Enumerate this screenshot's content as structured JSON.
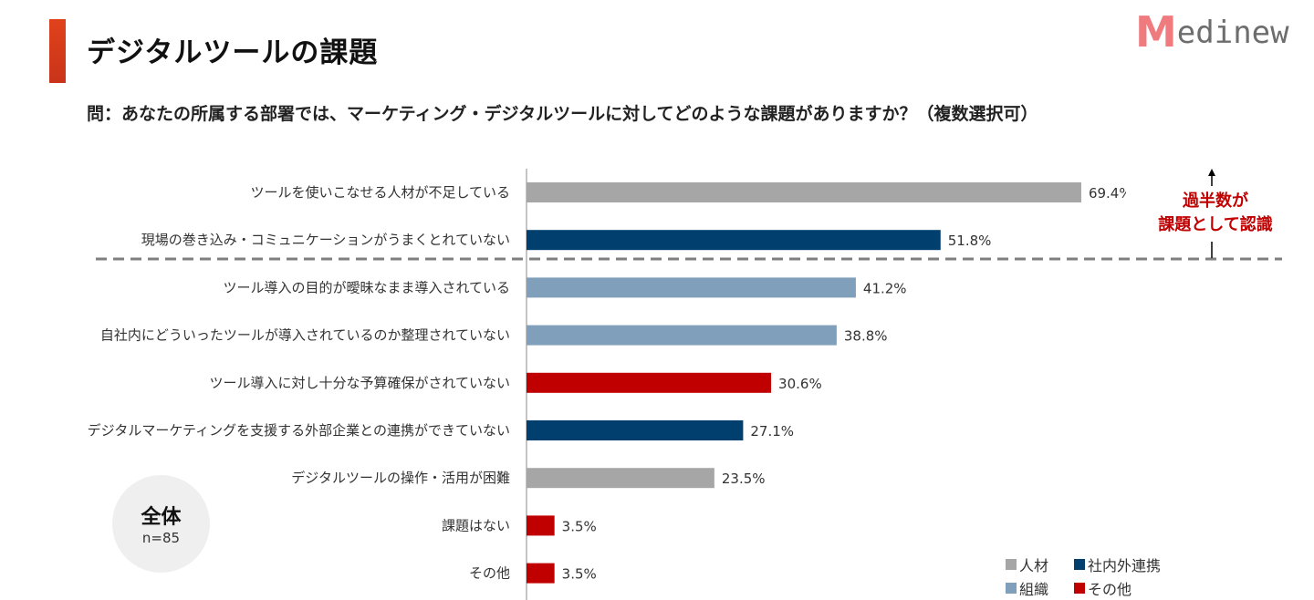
{
  "header": {
    "title": "デジタルツールの課題",
    "question": "問：あなたの所属する部署では、マーケティング・デジタルツールに対してどのような課題がありますか？（複数選択可）",
    "logo": "Medinew"
  },
  "annotation": {
    "line1": "過半数が",
    "line2": "課題として認識"
  },
  "badge": {
    "label": "全体",
    "n": "n=85"
  },
  "colors": {
    "人材": "#a6a6a6",
    "社内外連携": "#003f6e",
    "組織": "#7f9fba",
    "その他": "#c00000"
  },
  "legend": [
    {
      "label": "人材",
      "color": "#a6a6a6"
    },
    {
      "label": "社内外連携",
      "color": "#003f6e"
    },
    {
      "label": "組織",
      "color": "#7f9fba"
    },
    {
      "label": "その他",
      "color": "#c00000"
    }
  ],
  "chart_data": {
    "type": "bar",
    "orientation": "horizontal",
    "unit": "%",
    "categories": [
      "ツールを使いこなせる人材が不足している",
      "現場の巻き込み・コミュニケーションがうまくとれていない",
      "ツール導入の目的が曖昧なまま導入されている",
      "自社内にどういったツールが導入されているのか整理されていない",
      "ツール導入に対し十分な予算確保がされていない",
      "デジタルマーケティングを支援する外部企業との連携ができていない",
      "デジタルツールの操作・活用が困難",
      "課題はない",
      "その他"
    ],
    "values": [
      69.4,
      51.8,
      41.2,
      38.8,
      30.6,
      27.1,
      23.5,
      3.5,
      3.5
    ],
    "value_labels": [
      "69.4%",
      "51.8%",
      "41.2%",
      "38.8%",
      "30.6%",
      "27.1%",
      "23.5%",
      "3.5%",
      "3.5%"
    ],
    "groups": [
      "人材",
      "社内外連携",
      "組織",
      "組織",
      "その他",
      "社内外連携",
      "人材",
      "その他",
      "その他"
    ],
    "threshold_line": "過半数",
    "grid": false
  }
}
